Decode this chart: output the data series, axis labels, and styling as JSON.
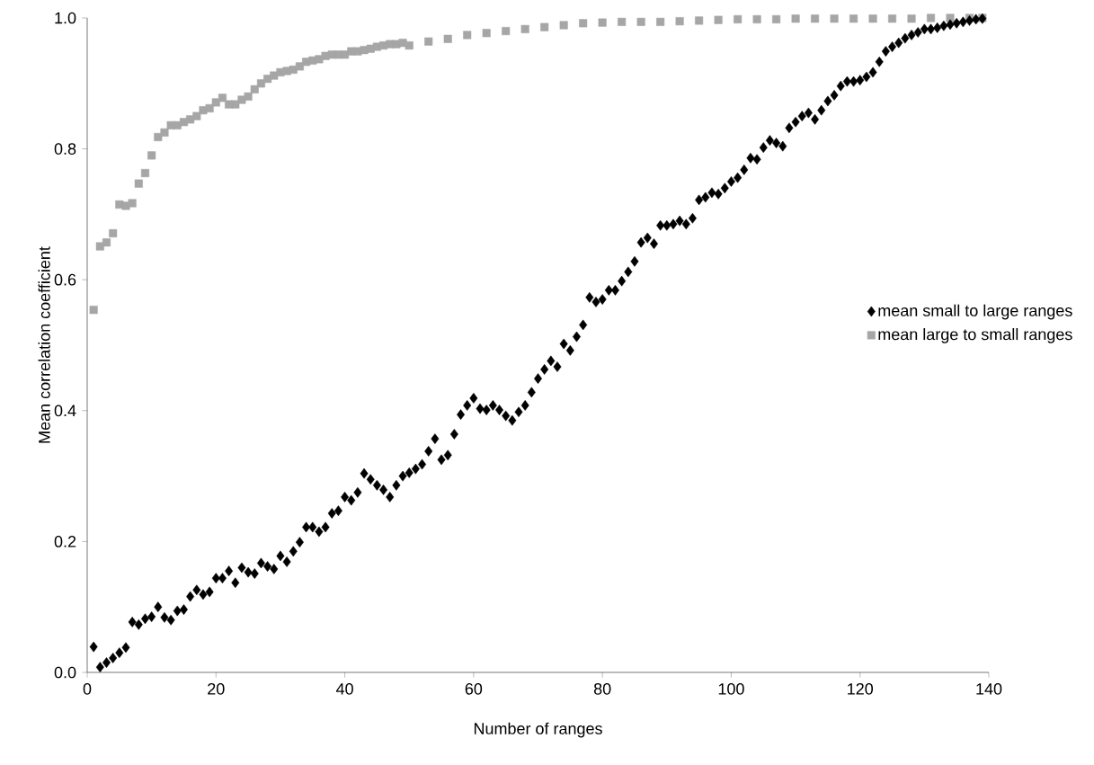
{
  "chart_data": {
    "type": "scatter",
    "xlabel": "Number of ranges",
    "ylabel": "Mean correlation coefficient",
    "xlim": [
      0,
      140
    ],
    "xticks": [
      0,
      20,
      40,
      60,
      80,
      100,
      120,
      140
    ],
    "ylim": [
      0,
      1
    ],
    "yticks": [
      {
        "value": 0,
        "label": "0.0"
      },
      {
        "value": 0.2,
        "label": "0.2"
      },
      {
        "value": 0.4,
        "label": "0.4"
      },
      {
        "value": 0.6,
        "label": "0.6"
      },
      {
        "value": 0.8,
        "label": "0.8"
      },
      {
        "value": 1,
        "label": "1.0"
      }
    ],
    "legend": "right",
    "series": [
      {
        "name": "mean small to large ranges",
        "color": "#000000",
        "marker": "diamond",
        "x": [
          1,
          2,
          3,
          4,
          5,
          6,
          7,
          8,
          9,
          10,
          11,
          12,
          13,
          14,
          15,
          16,
          17,
          18,
          19,
          20,
          21,
          22,
          23,
          24,
          25,
          26,
          27,
          28,
          29,
          30,
          31,
          32,
          33,
          34,
          35,
          36,
          37,
          38,
          39,
          40,
          41,
          42,
          43,
          44,
          45,
          46,
          47,
          48,
          49,
          50,
          51,
          52,
          53,
          54,
          55,
          56,
          57,
          58,
          59,
          60,
          61,
          62,
          63,
          64,
          65,
          66,
          67,
          68,
          69,
          70,
          71,
          72,
          73,
          74,
          75,
          76,
          77,
          78,
          79,
          80,
          81,
          82,
          83,
          84,
          85,
          86,
          87,
          88,
          89,
          90,
          91,
          92,
          93,
          94,
          95,
          96,
          97,
          98,
          99,
          100,
          101,
          102,
          103,
          104,
          105,
          106,
          107,
          108,
          109,
          110,
          111,
          112,
          113,
          114,
          115,
          116,
          117,
          118,
          119,
          120,
          121,
          122,
          123,
          124,
          125,
          126,
          127,
          128,
          129,
          130,
          131,
          132,
          133,
          134,
          135,
          136,
          137,
          138,
          139
        ],
        "values": [
          0.039,
          0.008,
          0.015,
          0.022,
          0.03,
          0.038,
          0.077,
          0.073,
          0.082,
          0.085,
          0.1,
          0.084,
          0.08,
          0.094,
          0.096,
          0.116,
          0.126,
          0.119,
          0.123,
          0.144,
          0.144,
          0.155,
          0.137,
          0.16,
          0.153,
          0.151,
          0.167,
          0.162,
          0.158,
          0.178,
          0.169,
          0.185,
          0.199,
          0.222,
          0.222,
          0.215,
          0.222,
          0.243,
          0.247,
          0.268,
          0.263,
          0.275,
          0.304,
          0.295,
          0.286,
          0.279,
          0.268,
          0.286,
          0.3,
          0.305,
          0.311,
          0.318,
          0.338,
          0.357,
          0.325,
          0.332,
          0.364,
          0.394,
          0.408,
          0.419,
          0.403,
          0.401,
          0.408,
          0.401,
          0.392,
          0.385,
          0.398,
          0.408,
          0.428,
          0.449,
          0.463,
          0.476,
          0.467,
          0.502,
          0.492,
          0.513,
          0.531,
          0.573,
          0.566,
          0.57,
          0.584,
          0.584,
          0.598,
          0.612,
          0.628,
          0.657,
          0.664,
          0.655,
          0.683,
          0.683,
          0.685,
          0.69,
          0.685,
          0.694,
          0.722,
          0.726,
          0.733,
          0.731,
          0.74,
          0.75,
          0.756,
          0.768,
          0.786,
          0.784,
          0.802,
          0.813,
          0.809,
          0.804,
          0.832,
          0.841,
          0.85,
          0.855,
          0.845,
          0.859,
          0.873,
          0.882,
          0.896,
          0.903,
          0.903,
          0.905,
          0.91,
          0.917,
          0.933,
          0.949,
          0.956,
          0.962,
          0.969,
          0.974,
          0.978,
          0.983,
          0.983,
          0.985,
          0.988,
          0.99,
          0.992,
          0.994,
          0.996,
          0.998,
          0.999
        ]
      },
      {
        "name": "mean large to small ranges",
        "color": "#a6a6a6",
        "marker": "square",
        "x": [
          1,
          2,
          3,
          4,
          5,
          6,
          7,
          8,
          9,
          10,
          11,
          12,
          13,
          14,
          15,
          16,
          17,
          18,
          19,
          20,
          21,
          22,
          23,
          24,
          25,
          26,
          27,
          28,
          29,
          30,
          31,
          32,
          33,
          34,
          35,
          36,
          37,
          38,
          39,
          40,
          41,
          42,
          43,
          44,
          45,
          46,
          47,
          48,
          49,
          50,
          53,
          56,
          59,
          62,
          65,
          68,
          71,
          74,
          77,
          80,
          83,
          86,
          89,
          92,
          95,
          98,
          101,
          104,
          107,
          110,
          113,
          116,
          119,
          122,
          125,
          128,
          131,
          134,
          137,
          139
        ],
        "values": [
          0.554,
          0.651,
          0.657,
          0.671,
          0.715,
          0.713,
          0.717,
          0.747,
          0.763,
          0.79,
          0.818,
          0.825,
          0.836,
          0.836,
          0.841,
          0.845,
          0.85,
          0.859,
          0.862,
          0.871,
          0.878,
          0.868,
          0.868,
          0.875,
          0.88,
          0.891,
          0.9,
          0.907,
          0.912,
          0.917,
          0.919,
          0.921,
          0.926,
          0.933,
          0.935,
          0.937,
          0.942,
          0.944,
          0.944,
          0.944,
          0.949,
          0.949,
          0.951,
          0.953,
          0.956,
          0.958,
          0.96,
          0.96,
          0.962,
          0.958,
          0.964,
          0.968,
          0.974,
          0.977,
          0.98,
          0.983,
          0.986,
          0.989,
          0.992,
          0.993,
          0.994,
          0.994,
          0.994,
          0.995,
          0.996,
          0.997,
          0.998,
          0.998,
          0.998,
          0.999,
          0.999,
          0.999,
          0.999,
          0.999,
          0.999,
          0.999,
          1.0,
          1.0,
          1.0,
          1.0
        ]
      }
    ]
  }
}
